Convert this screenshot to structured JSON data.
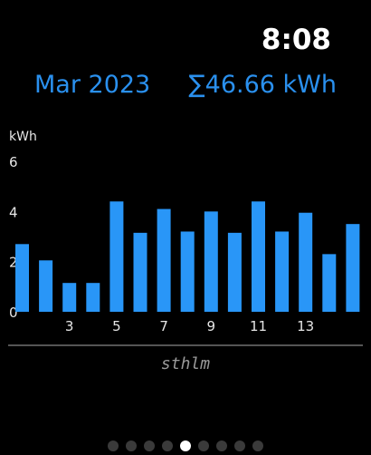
{
  "status_bar": {
    "time": "8:08"
  },
  "header": {
    "month": "Mar 2023",
    "total": "∑46.66 kWh"
  },
  "chart_data": {
    "type": "bar",
    "ylabel": "kWh",
    "ylim": [
      0,
      6
    ],
    "y_ticks": [
      "6",
      "4",
      "2",
      "0"
    ],
    "categories": [
      "1",
      "2",
      "3",
      "4",
      "5",
      "6",
      "7",
      "8",
      "9",
      "10",
      "11",
      "12",
      "13",
      "14",
      "15"
    ],
    "x_tick_labels": [
      "3",
      "5",
      "7",
      "9",
      "11",
      "13"
    ],
    "x_tick_categories": [
      "3",
      "5",
      "7",
      "9",
      "11",
      "13"
    ],
    "values": [
      2.7,
      2.05,
      1.15,
      1.15,
      4.4,
      3.15,
      4.1,
      3.2,
      4.0,
      3.15,
      4.4,
      3.2,
      3.95,
      2.3,
      3.5
    ],
    "bar_color": "#2996f7",
    "grid": false
  },
  "footer": {
    "location": "sthlm"
  },
  "pager": {
    "page_count": 9,
    "active_page": 4
  },
  "colors": {
    "accent": "#2a90ee",
    "background": "#000000"
  }
}
